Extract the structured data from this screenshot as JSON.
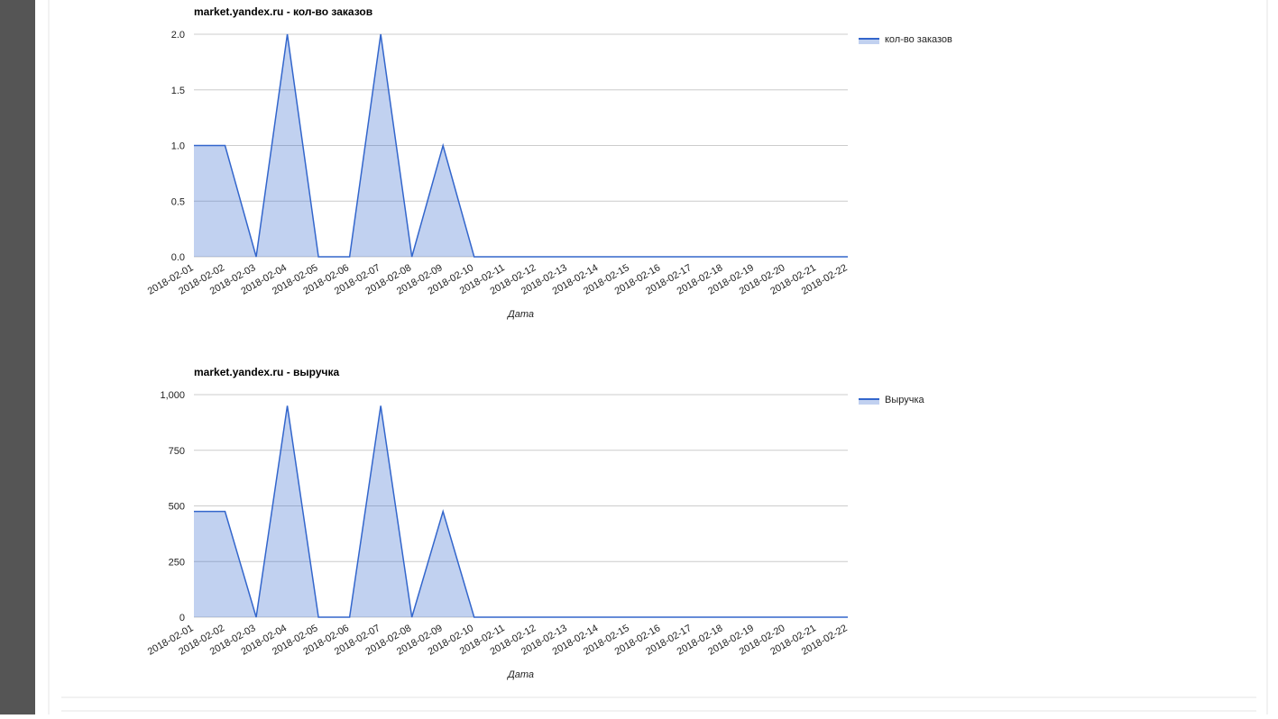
{
  "chart_data": [
    {
      "type": "area",
      "title": "market.yandex.ru - кол-во заказов",
      "x_label": "Дата",
      "categories": [
        "2018-02-01",
        "2018-02-02",
        "2018-02-03",
        "2018-02-04",
        "2018-02-05",
        "2018-02-06",
        "2018-02-07",
        "2018-02-08",
        "2018-02-09",
        "2018-02-10",
        "2018-02-11",
        "2018-02-12",
        "2018-02-13",
        "2018-02-14",
        "2018-02-15",
        "2018-02-16",
        "2018-02-17",
        "2018-02-18",
        "2018-02-19",
        "2018-02-20",
        "2018-02-21",
        "2018-02-22"
      ],
      "series": [
        {
          "name": "кол-во заказов",
          "color": "#3366cc",
          "values": [
            1,
            1,
            0,
            2,
            0,
            0,
            2,
            0,
            1,
            0,
            0,
            0,
            0,
            0,
            0,
            0,
            0,
            0,
            0,
            0,
            0,
            0
          ]
        }
      ],
      "ylim": [
        0,
        2
      ],
      "yticks": [
        {
          "value": 0,
          "label": "0.0"
        },
        0.5,
        {
          "value": 1,
          "label": "1.0"
        },
        1.5,
        {
          "value": 2,
          "label": "2.0"
        }
      ],
      "grid": true,
      "legend": "right"
    },
    {
      "type": "area",
      "title": "market.yandex.ru - выручка",
      "x_label": "Дата",
      "categories": [
        "2018-02-01",
        "2018-02-02",
        "2018-02-03",
        "2018-02-04",
        "2018-02-05",
        "2018-02-06",
        "2018-02-07",
        "2018-02-08",
        "2018-02-09",
        "2018-02-10",
        "2018-02-11",
        "2018-02-12",
        "2018-02-13",
        "2018-02-14",
        "2018-02-15",
        "2018-02-16",
        "2018-02-17",
        "2018-02-18",
        "2018-02-19",
        "2018-02-20",
        "2018-02-21",
        "2018-02-22"
      ],
      "series": [
        {
          "name": "Выручка",
          "color": "#3366cc",
          "values": [
            475,
            475,
            0,
            950,
            0,
            0,
            950,
            0,
            475,
            0,
            0,
            0,
            0,
            0,
            0,
            0,
            0,
            0,
            0,
            0,
            0,
            0
          ]
        }
      ],
      "ylim": [
        0,
        1000
      ],
      "yticks": [
        0,
        250,
        500,
        750,
        {
          "value": 1000,
          "label": "1,000"
        }
      ],
      "grid": true,
      "legend": "right"
    }
  ]
}
